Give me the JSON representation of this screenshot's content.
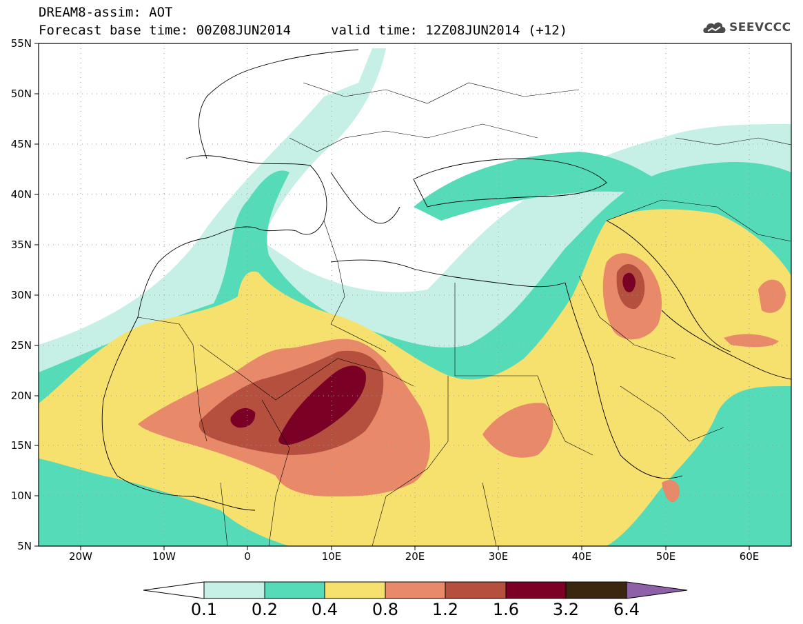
{
  "header": {
    "title_line1": "DREAM8-assim: AOT",
    "title_line2": "Forecast base time: 00Z08JUN2014",
    "valid_time": "valid time: 12Z08JUN2014 (+12)",
    "logo_text": "SEEVCCC"
  },
  "axes": {
    "lat_labels": [
      "55N",
      "50N",
      "45N",
      "40N",
      "35N",
      "30N",
      "25N",
      "20N",
      "15N",
      "10N",
      "5N"
    ],
    "lon_labels": [
      "20W",
      "10W",
      "0",
      "10E",
      "20E",
      "30E",
      "40E",
      "50E",
      "60E"
    ]
  },
  "colorbar": {
    "labels": [
      "0.1",
      "0.2",
      "0.4",
      "0.8",
      "1.2",
      "1.6",
      "3.2",
      "6.4"
    ],
    "colors": [
      "#ffffff",
      "#c6f0e6",
      "#56dbb8",
      "#f6e06e",
      "#e8896a",
      "#b5503f",
      "#7b0025",
      "#3b2710",
      "#8e60a8"
    ]
  }
}
